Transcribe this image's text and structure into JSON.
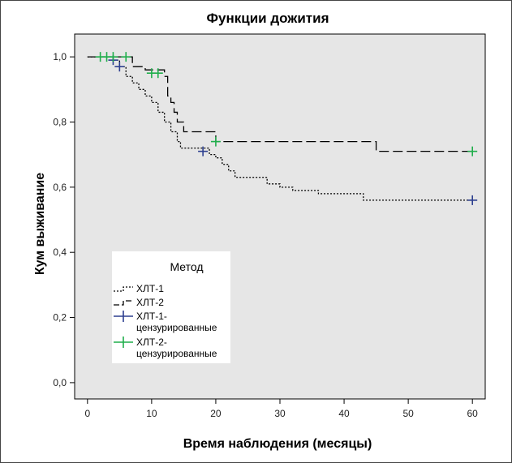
{
  "chart_data": {
    "type": "line",
    "title": "Функции дожития",
    "xlabel": "Время наблюдения (месяцы)",
    "ylabel": "Кум выживание",
    "xlim": [
      -2,
      62
    ],
    "ylim": [
      -0.05,
      1.07
    ],
    "x_ticks": [
      0,
      10,
      20,
      30,
      40,
      50,
      60
    ],
    "x_tick_labels": [
      "0",
      "10",
      "20",
      "30",
      "40",
      "50",
      "60"
    ],
    "y_ticks": [
      0.0,
      0.2,
      0.4,
      0.6,
      0.8,
      1.0
    ],
    "y_tick_labels": [
      "0,0",
      "0,2",
      "0,4",
      "0,6",
      "0,8",
      "1,0"
    ],
    "grid": false,
    "background": "#e6e6e6",
    "legend": {
      "title": "Метод",
      "placement": "center-left",
      "entries": [
        {
          "label": "ХЛТ-1",
          "kind": "line-dotted"
        },
        {
          "label": "ХЛТ-2",
          "kind": "line-dashed"
        },
        {
          "label_lines": [
            "ХЛТ-1-",
            "цензурированные"
          ],
          "kind": "plus",
          "color": "#2d3f8f"
        },
        {
          "label_lines": [
            "ХЛТ-2-",
            "цензурированные"
          ],
          "kind": "plus",
          "color": "#1fae4b"
        }
      ]
    },
    "series": [
      {
        "name": "ХЛТ-1",
        "style": "dotted",
        "color": "#000000",
        "steps": [
          [
            0,
            1.0
          ],
          [
            4,
            0.99
          ],
          [
            5,
            0.97
          ],
          [
            6,
            0.94
          ],
          [
            7,
            0.92
          ],
          [
            8,
            0.9
          ],
          [
            9,
            0.88
          ],
          [
            10,
            0.86
          ],
          [
            11,
            0.83
          ],
          [
            12,
            0.8
          ],
          [
            13,
            0.77
          ],
          [
            14,
            0.74
          ],
          [
            14.5,
            0.72
          ],
          [
            19,
            0.7
          ],
          [
            20,
            0.69
          ],
          [
            21,
            0.67
          ],
          [
            22,
            0.65
          ],
          [
            23,
            0.63
          ],
          [
            28,
            0.61
          ],
          [
            30,
            0.6
          ],
          [
            32,
            0.59
          ],
          [
            36,
            0.58
          ],
          [
            43,
            0.56
          ],
          [
            60,
            0.56
          ]
        ],
        "censored": [
          [
            4,
            0.99
          ],
          [
            5,
            0.97
          ],
          [
            18,
            0.71
          ],
          [
            60,
            0.56
          ]
        ],
        "censored_color": "#2d3f8f"
      },
      {
        "name": "ХЛТ-2",
        "style": "dashed",
        "color": "#000000",
        "steps": [
          [
            0,
            1.0
          ],
          [
            7,
            0.97
          ],
          [
            9,
            0.96
          ],
          [
            12,
            0.94
          ],
          [
            12.5,
            0.88
          ],
          [
            13,
            0.86
          ],
          [
            13.5,
            0.83
          ],
          [
            14,
            0.8
          ],
          [
            15,
            0.77
          ],
          [
            20,
            0.74
          ],
          [
            45,
            0.71
          ],
          [
            60,
            0.71
          ]
        ],
        "censored": [
          [
            2,
            1.0
          ],
          [
            3,
            1.0
          ],
          [
            4,
            1.0
          ],
          [
            6,
            1.0
          ],
          [
            10,
            0.95
          ],
          [
            11,
            0.95
          ],
          [
            20,
            0.74
          ],
          [
            60,
            0.71
          ]
        ],
        "censored_color": "#1fae4b"
      }
    ]
  }
}
